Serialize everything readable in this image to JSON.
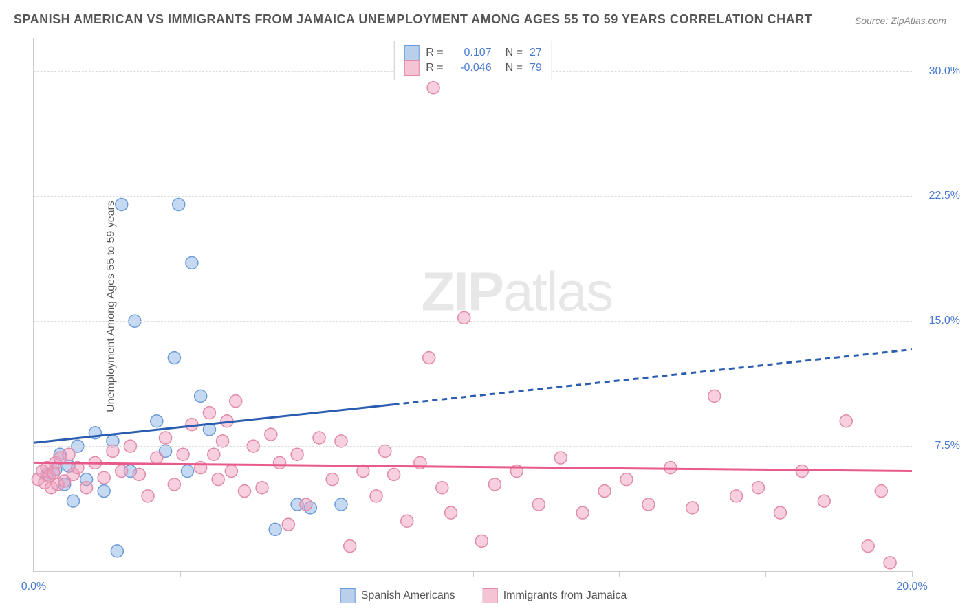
{
  "title": "SPANISH AMERICAN VS IMMIGRANTS FROM JAMAICA UNEMPLOYMENT AMONG AGES 55 TO 59 YEARS CORRELATION CHART",
  "source": "Source: ZipAtlas.com",
  "y_axis_label": "Unemployment Among Ages 55 to 59 years",
  "watermark_bold": "ZIP",
  "watermark_light": "atlas",
  "chart": {
    "type": "scatter",
    "background_color": "#ffffff",
    "grid_color": "#dddddd",
    "axis_color": "#cccccc",
    "xlim": [
      0,
      20
    ],
    "ylim": [
      0,
      32
    ],
    "y_ticks": [
      7.5,
      15.0,
      22.5,
      30.0
    ],
    "y_tick_labels": [
      "7.5%",
      "15.0%",
      "22.5%",
      "30.0%"
    ],
    "x_ticks": [
      0,
      3.33,
      6.67,
      10,
      13.33,
      16.67,
      20
    ],
    "x_tick_labels_shown": {
      "0": "0.0%",
      "20": "20.0%"
    },
    "series": [
      {
        "name": "Spanish Americans",
        "color_fill": "rgba(140,180,230,0.5)",
        "color_stroke": "#6a9bd8",
        "swatch_fill": "#b8d0ec",
        "swatch_border": "#6a9bd8",
        "r_value": "0.107",
        "n_value": "27",
        "marker_radius": 9,
        "trend_line": {
          "x1": 0,
          "y1": 7.7,
          "x2": 20,
          "y2": 13.3,
          "solid_until_x": 8.2,
          "color": "#2a5db0",
          "width": 3
        },
        "points": [
          [
            0.3,
            5.8
          ],
          [
            0.5,
            6.1
          ],
          [
            0.6,
            7.0
          ],
          [
            0.7,
            5.2
          ],
          [
            0.8,
            6.3
          ],
          [
            0.9,
            4.2
          ],
          [
            1.0,
            7.5
          ],
          [
            1.2,
            5.5
          ],
          [
            1.4,
            8.3
          ],
          [
            1.6,
            4.8
          ],
          [
            1.8,
            7.8
          ],
          [
            1.9,
            1.2
          ],
          [
            2.0,
            22.0
          ],
          [
            2.2,
            6.0
          ],
          [
            2.3,
            15.0
          ],
          [
            2.8,
            9.0
          ],
          [
            3.0,
            7.2
          ],
          [
            3.2,
            12.8
          ],
          [
            3.3,
            22.0
          ],
          [
            3.5,
            6.0
          ],
          [
            3.6,
            18.5
          ],
          [
            3.8,
            10.5
          ],
          [
            4.0,
            8.5
          ],
          [
            5.5,
            2.5
          ],
          [
            6.0,
            4.0
          ],
          [
            6.3,
            3.8
          ],
          [
            7.0,
            4.0
          ]
        ]
      },
      {
        "name": "Immigrants from Jamaica",
        "color_fill": "rgba(240,160,190,0.5)",
        "color_stroke": "#e089a8",
        "swatch_fill": "#f5c4d4",
        "swatch_border": "#e089a8",
        "r_value": "-0.046",
        "n_value": "79",
        "marker_radius": 9,
        "trend_line": {
          "x1": 0,
          "y1": 6.5,
          "x2": 20,
          "y2": 6.0,
          "solid_until_x": 20,
          "color": "#e85a8a",
          "width": 3
        },
        "points": [
          [
            0.1,
            5.5
          ],
          [
            0.2,
            6.0
          ],
          [
            0.25,
            5.3
          ],
          [
            0.3,
            6.2
          ],
          [
            0.35,
            5.7
          ],
          [
            0.4,
            5.0
          ],
          [
            0.45,
            5.9
          ],
          [
            0.5,
            6.5
          ],
          [
            0.55,
            5.2
          ],
          [
            0.6,
            6.8
          ],
          [
            0.7,
            5.4
          ],
          [
            0.8,
            7.0
          ],
          [
            0.9,
            5.8
          ],
          [
            1.0,
            6.2
          ],
          [
            1.2,
            5.0
          ],
          [
            1.4,
            6.5
          ],
          [
            1.6,
            5.6
          ],
          [
            1.8,
            7.2
          ],
          [
            2.0,
            6.0
          ],
          [
            2.2,
            7.5
          ],
          [
            2.4,
            5.8
          ],
          [
            2.6,
            4.5
          ],
          [
            2.8,
            6.8
          ],
          [
            3.0,
            8.0
          ],
          [
            3.2,
            5.2
          ],
          [
            3.4,
            7.0
          ],
          [
            3.6,
            8.8
          ],
          [
            3.8,
            6.2
          ],
          [
            4.0,
            9.5
          ],
          [
            4.1,
            7.0
          ],
          [
            4.2,
            5.5
          ],
          [
            4.3,
            7.8
          ],
          [
            4.4,
            9.0
          ],
          [
            4.5,
            6.0
          ],
          [
            4.6,
            10.2
          ],
          [
            4.8,
            4.8
          ],
          [
            5.0,
            7.5
          ],
          [
            5.2,
            5.0
          ],
          [
            5.4,
            8.2
          ],
          [
            5.6,
            6.5
          ],
          [
            5.8,
            2.8
          ],
          [
            6.0,
            7.0
          ],
          [
            6.2,
            4.0
          ],
          [
            6.5,
            8.0
          ],
          [
            6.8,
            5.5
          ],
          [
            7.0,
            7.8
          ],
          [
            7.2,
            1.5
          ],
          [
            7.5,
            6.0
          ],
          [
            7.8,
            4.5
          ],
          [
            8.0,
            7.2
          ],
          [
            8.2,
            5.8
          ],
          [
            8.5,
            3.0
          ],
          [
            8.8,
            6.5
          ],
          [
            9.0,
            12.8
          ],
          [
            9.1,
            29.0
          ],
          [
            9.3,
            5.0
          ],
          [
            9.5,
            3.5
          ],
          [
            9.8,
            15.2
          ],
          [
            10.2,
            1.8
          ],
          [
            10.5,
            5.2
          ],
          [
            11.0,
            6.0
          ],
          [
            11.5,
            4.0
          ],
          [
            12.0,
            6.8
          ],
          [
            12.5,
            3.5
          ],
          [
            13.0,
            4.8
          ],
          [
            13.5,
            5.5
          ],
          [
            14.0,
            4.0
          ],
          [
            14.5,
            6.2
          ],
          [
            15.0,
            3.8
          ],
          [
            15.5,
            10.5
          ],
          [
            16.0,
            4.5
          ],
          [
            16.5,
            5.0
          ],
          [
            17.0,
            3.5
          ],
          [
            17.5,
            6.0
          ],
          [
            18.0,
            4.2
          ],
          [
            18.5,
            9.0
          ],
          [
            19.0,
            1.5
          ],
          [
            19.3,
            4.8
          ],
          [
            19.5,
            0.5
          ]
        ]
      }
    ]
  }
}
